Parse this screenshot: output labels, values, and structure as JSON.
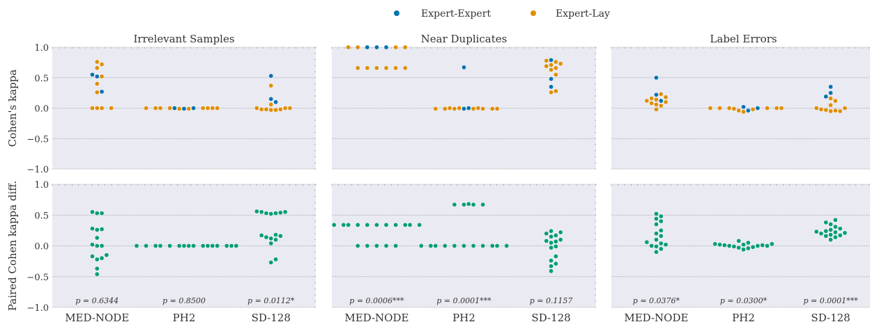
{
  "legend": [
    {
      "label": "Expert-Expert",
      "color": "#0173b2"
    },
    {
      "label": "Expert-Lay",
      "color": "#de8f05"
    }
  ],
  "diff_color": "#029e73",
  "chart_data": {
    "type": "scatter",
    "style": "swarm",
    "grid": true,
    "legend_position": "top-center",
    "categories": [
      "MED-NODE",
      "PH2",
      "SD-128"
    ],
    "panel_titles": [
      "Irrelevant Samples",
      "Near Duplicates",
      "Label Errors"
    ],
    "yticks": [
      1.0,
      0.5,
      0.0,
      -0.5,
      -1.0
    ],
    "ytick_labels": [
      "1.0",
      "0.5",
      "0.0",
      "−0.5",
      "−1.0"
    ],
    "ylim": [
      -1.0,
      1.0
    ],
    "rows": [
      {
        "ylabel": "Cohen's kappa",
        "panels": [
          {
            "title": "Irrelevant Samples",
            "series": [
              {
                "name": "Expert-Expert",
                "values": [
                  [
                    0.27,
                    0.52,
                    0.55
                  ],
                  [
                    0.0,
                    -0.01,
                    0.0
                  ],
                  [
                    0.1,
                    0.15,
                    0.53
                  ]
                ]
              },
              {
                "name": "Expert-Lay",
                "values": [
                  [
                    0.0,
                    0.0,
                    0.0,
                    0.0,
                    0.26,
                    0.4,
                    0.52,
                    0.66,
                    0.72,
                    0.76
                  ],
                  [
                    0.0,
                    0.0,
                    0.0,
                    0.0,
                    0.0,
                    0.0,
                    0.0,
                    -0.01,
                    -0.01,
                    0.0
                  ],
                  [
                    -0.03,
                    -0.03,
                    -0.02,
                    -0.02,
                    -0.02,
                    0.0,
                    0.0,
                    0.0,
                    0.06,
                    0.37
                  ]
                ]
              }
            ]
          },
          {
            "title": "Near Duplicates",
            "series": [
              {
                "name": "Expert-Expert",
                "values": [
                  [
                    1.0,
                    1.0,
                    1.0
                  ],
                  [
                    0.67,
                    -0.01,
                    0.0
                  ],
                  [
                    0.35,
                    0.48,
                    0.79
                  ]
                ]
              },
              {
                "name": "Expert-Lay",
                "values": [
                  [
                    0.66,
                    0.66,
                    0.66,
                    0.66,
                    0.66,
                    0.66,
                    1.0,
                    1.0,
                    1.0,
                    1.0
                  ],
                  [
                    -0.01,
                    -0.01,
                    -0.01,
                    -0.01,
                    -0.01,
                    -0.01,
                    -0.01,
                    0.0,
                    0.0,
                    0.0
                  ],
                  [
                    0.26,
                    0.28,
                    0.55,
                    0.63,
                    0.66,
                    0.69,
                    0.71,
                    0.73,
                    0.76,
                    0.78
                  ]
                ]
              }
            ]
          },
          {
            "title": "Label Errors",
            "series": [
              {
                "name": "Expert-Expert",
                "values": [
                  [
                    0.12,
                    0.22,
                    0.5
                  ],
                  [
                    -0.04,
                    0.02,
                    0.0
                  ],
                  [
                    0.19,
                    0.25,
                    0.35
                  ]
                ]
              },
              {
                "name": "Expert-Lay",
                "values": [
                  [
                    -0.02,
                    0.04,
                    0.06,
                    0.08,
                    0.1,
                    0.12,
                    0.14,
                    0.16,
                    0.18,
                    0.23
                  ],
                  [
                    -0.06,
                    -0.04,
                    -0.02,
                    0.0,
                    0.0,
                    0.0,
                    0.0,
                    0.0,
                    0.0,
                    -0.01
                  ],
                  [
                    -0.05,
                    -0.05,
                    -0.04,
                    -0.03,
                    -0.02,
                    0.0,
                    0.0,
                    0.05,
                    0.12,
                    0.16
                  ]
                ]
              }
            ]
          }
        ]
      },
      {
        "ylabel": "Paired Cohen kappa diff.",
        "panels": [
          {
            "title": "Irrelevant Samples",
            "series": [
              {
                "name": "Paired Cohen kappa diff.",
                "values": [
                  [
                    -0.46,
                    -0.37,
                    -0.22,
                    -0.2,
                    -0.17,
                    -0.15,
                    0.0,
                    0.0,
                    0.02,
                    0.13,
                    0.26,
                    0.27,
                    0.28,
                    0.53,
                    0.53,
                    0.55
                  ],
                  [
                    0.0,
                    0.0,
                    0.0,
                    0.0,
                    0.0,
                    0.0,
                    0.0,
                    0.0,
                    0.0,
                    0.0,
                    0.0,
                    0.0,
                    0.0,
                    0.0,
                    0.0,
                    0.0
                  ],
                  [
                    -0.27,
                    -0.22,
                    0.04,
                    0.1,
                    0.12,
                    0.14,
                    0.16,
                    0.17,
                    0.18,
                    0.52,
                    0.53,
                    0.53,
                    0.54,
                    0.55,
                    0.55,
                    0.56
                  ]
                ]
              }
            ],
            "p_values": [
              "p = 0.6344",
              "p = 0.8500",
              "p = 0.0112*"
            ]
          },
          {
            "title": "Near Duplicates",
            "series": [
              {
                "name": "Paired Cohen kappa diff.",
                "values": [
                  [
                    0.0,
                    0.0,
                    0.0,
                    0.0,
                    0.0,
                    0.34,
                    0.34,
                    0.34,
                    0.34,
                    0.34,
                    0.34,
                    0.34,
                    0.34,
                    0.34,
                    0.34,
                    0.34
                  ],
                  [
                    0.0,
                    0.0,
                    0.0,
                    0.0,
                    0.0,
                    0.0,
                    0.0,
                    0.0,
                    0.0,
                    0.0,
                    0.0,
                    0.67,
                    0.67,
                    0.67,
                    0.67,
                    0.68
                  ],
                  [
                    -0.41,
                    -0.33,
                    -0.29,
                    -0.24,
                    -0.17,
                    -0.03,
                    -0.01,
                    0.05,
                    0.07,
                    0.08,
                    0.1,
                    0.15,
                    0.17,
                    0.2,
                    0.22,
                    0.24
                  ]
                ]
              }
            ],
            "p_values": [
              "p = 0.0006***",
              "p = 0.0001***",
              "p = 0.1157"
            ]
          },
          {
            "title": "Label Errors",
            "series": [
              {
                "name": "Paired Cohen kappa diff.",
                "values": [
                  [
                    -0.1,
                    -0.05,
                    -0.01,
                    0.0,
                    0.02,
                    0.04,
                    0.06,
                    0.1,
                    0.16,
                    0.2,
                    0.25,
                    0.35,
                    0.4,
                    0.44,
                    0.48,
                    0.52
                  ],
                  [
                    -0.06,
                    -0.04,
                    -0.03,
                    -0.02,
                    -0.01,
                    0.0,
                    0.0,
                    0.0,
                    0.01,
                    0.01,
                    0.02,
                    0.02,
                    0.03,
                    0.03,
                    0.05,
                    0.08
                  ],
                  [
                    0.1,
                    0.14,
                    0.16,
                    0.17,
                    0.18,
                    0.2,
                    0.21,
                    0.22,
                    0.23,
                    0.24,
                    0.26,
                    0.28,
                    0.31,
                    0.35,
                    0.38,
                    0.42
                  ]
                ]
              }
            ],
            "p_values": [
              "p = 0.0376*",
              "p = 0.0300*",
              "p = 0.0001***"
            ]
          }
        ]
      }
    ]
  }
}
